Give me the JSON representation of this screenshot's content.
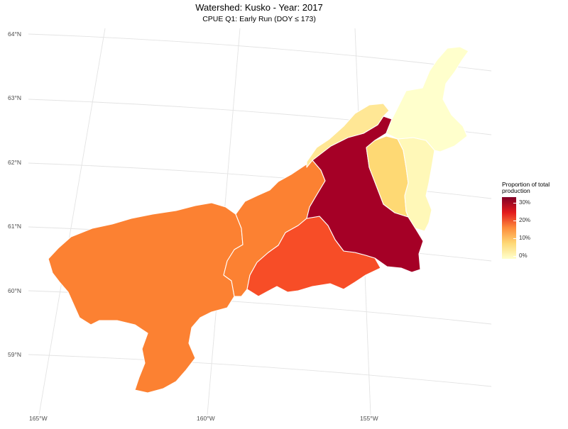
{
  "title": "Watershed: Kusko - Year: 2017",
  "subtitle": "CPUE Q1: Early Run (DOY ≤ 173)",
  "axes": {
    "lat_labels": [
      "64°N",
      "63°N",
      "62°N",
      "61°N",
      "60°N",
      "59°N"
    ],
    "lon_labels": [
      "165°W",
      "160°W",
      "155°W"
    ]
  },
  "legend": {
    "title": "Proportion of total production",
    "ticks": [
      "30%",
      "20%",
      "10%",
      "0%"
    ],
    "colors": [
      "#ffffcc",
      "#fed976",
      "#fd8d3c",
      "#e31a1c",
      "#800026"
    ]
  },
  "regions": [
    {
      "id": "lower-kuskokwim-west",
      "proportion": 0.21,
      "color": "#fc8132"
    },
    {
      "id": "lower-kuskokwim-middle",
      "proportion": 0.21,
      "color": "#fc8132"
    },
    {
      "id": "kwethluk-aniak",
      "proportion": 0.24,
      "color": "#f74d27"
    },
    {
      "id": "holitna-stony",
      "proportion": 0.36,
      "color": "#a50026"
    },
    {
      "id": "upper-north-strip",
      "proportion": 0.04,
      "color": "#ffe795"
    },
    {
      "id": "takotna-upper",
      "proportion": 0.08,
      "color": "#fed974"
    },
    {
      "id": "middle-fork",
      "proportion": 0.02,
      "color": "#fff8b8"
    },
    {
      "id": "upper-headwaters",
      "proportion": 0.01,
      "color": "#ffffcc"
    }
  ]
}
